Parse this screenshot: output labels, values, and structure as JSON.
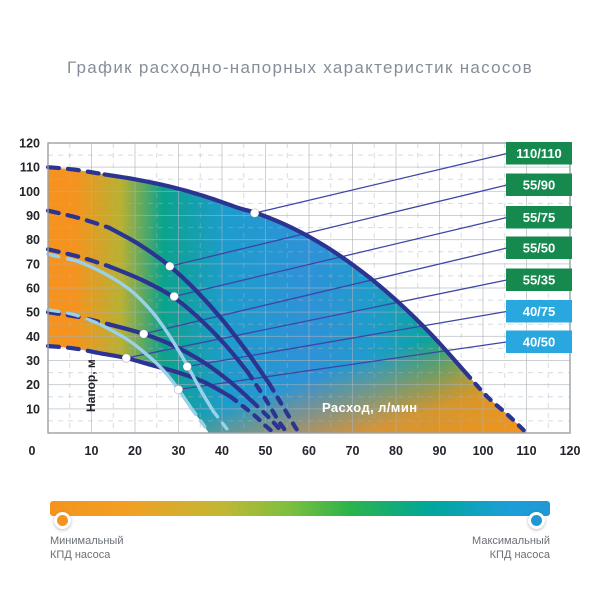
{
  "title": "График расходно-напорных характеристик насосов",
  "chart_data": {
    "type": "line",
    "xlabel": "Расход, л/мин",
    "ylabel": "Напор, м",
    "xlim": [
      0,
      120
    ],
    "ylim": [
      0,
      120
    ],
    "x_ticks": [
      0,
      10,
      20,
      30,
      40,
      50,
      60,
      70,
      80,
      90,
      100,
      110,
      120
    ],
    "y_ticks": [
      10,
      20,
      30,
      40,
      50,
      60,
      70,
      80,
      90,
      100,
      110,
      120
    ],
    "grid": {
      "major_step": 10,
      "minor_step": 5,
      "minor_style": "dashed"
    },
    "series": [
      {
        "name": "110/110",
        "type": "main",
        "box": "green",
        "dash_head": 2,
        "dash_tail": 3,
        "points": [
          [
            0,
            110
          ],
          [
            6,
            109
          ],
          [
            13,
            107
          ],
          [
            20,
            105
          ],
          [
            28,
            102
          ],
          [
            36,
            98
          ],
          [
            44,
            93
          ],
          [
            48,
            91
          ],
          [
            56,
            85
          ],
          [
            64,
            77
          ],
          [
            72,
            67
          ],
          [
            80,
            55
          ],
          [
            88,
            41
          ],
          [
            96,
            25
          ],
          [
            101,
            15
          ],
          [
            106,
            7
          ],
          [
            110,
            0
          ]
        ],
        "marker": [
          47.5,
          91
        ]
      },
      {
        "name": "55/90",
        "type": "main",
        "box": "green",
        "dash_head": 2,
        "dash_tail": 3,
        "points": [
          [
            0,
            92
          ],
          [
            7,
            89
          ],
          [
            14,
            85
          ],
          [
            21,
            78
          ],
          [
            28,
            69
          ],
          [
            34,
            59
          ],
          [
            40,
            47
          ],
          [
            46,
            33
          ],
          [
            51,
            20
          ],
          [
            55,
            8
          ],
          [
            57,
            2
          ],
          [
            58,
            0
          ]
        ],
        "marker": [
          28,
          69
        ]
      },
      {
        "name": "55/75",
        "type": "main",
        "box": "green",
        "dash_head": 2,
        "dash_tail": 3,
        "points": [
          [
            0,
            76
          ],
          [
            7,
            73
          ],
          [
            14,
            69
          ],
          [
            22,
            63
          ],
          [
            29,
            56
          ],
          [
            35,
            47
          ],
          [
            41,
            36
          ],
          [
            46,
            25
          ],
          [
            50,
            14
          ],
          [
            53,
            5
          ],
          [
            55,
            0
          ]
        ],
        "marker": [
          29,
          56.5
        ]
      },
      {
        "name": "55/50",
        "type": "main",
        "box": "green",
        "dash_head": 2,
        "dash_tail": 2,
        "points": [
          [
            0,
            50
          ],
          [
            7,
            48
          ],
          [
            14,
            45
          ],
          [
            22,
            41
          ],
          [
            29,
            36
          ],
          [
            36,
            29
          ],
          [
            42,
            21
          ],
          [
            47,
            13
          ],
          [
            51,
            6
          ],
          [
            54,
            0
          ]
        ],
        "marker": [
          22,
          41
        ]
      },
      {
        "name": "55/35",
        "type": "main",
        "box": "green",
        "dash_head": 2,
        "dash_tail": 3,
        "points": [
          [
            0,
            36
          ],
          [
            6,
            35
          ],
          [
            12,
            33
          ],
          [
            18,
            31
          ],
          [
            24,
            28
          ],
          [
            30,
            25
          ],
          [
            36,
            21
          ],
          [
            42,
            15
          ],
          [
            47,
            8
          ],
          [
            50,
            3
          ],
          [
            52,
            0
          ]
        ],
        "marker": [
          18,
          31
        ]
      },
      {
        "name": "40/75",
        "type": "aux",
        "box": "blue",
        "dash_head": 1,
        "dash_tail": 2,
        "points": [
          [
            0,
            74
          ],
          [
            7,
            71
          ],
          [
            13,
            66
          ],
          [
            19,
            59
          ],
          [
            24,
            50
          ],
          [
            28,
            40
          ],
          [
            32,
            28
          ],
          [
            35,
            18
          ],
          [
            38,
            9
          ],
          [
            41,
            2
          ],
          [
            42,
            0
          ]
        ],
        "marker": [
          32,
          27.5
        ]
      },
      {
        "name": "40/50",
        "type": "aux",
        "box": "blue",
        "dash_head": 2,
        "dash_tail": 2,
        "points": [
          [
            0,
            51
          ],
          [
            6,
            49
          ],
          [
            12,
            45
          ],
          [
            18,
            39
          ],
          [
            23,
            32
          ],
          [
            27,
            25
          ],
          [
            30,
            18
          ],
          [
            33,
            10
          ],
          [
            35.5,
            4
          ],
          [
            37,
            0
          ]
        ],
        "marker": [
          30,
          18
        ]
      }
    ],
    "fill_lower_boundary": [
      [
        0,
        36
      ],
      [
        6,
        35
      ],
      [
        12,
        33
      ],
      [
        18,
        31
      ],
      [
        24,
        28
      ],
      [
        27,
        25
      ],
      [
        30,
        18
      ],
      [
        33,
        10
      ],
      [
        35.5,
        4
      ],
      [
        37,
        0
      ]
    ],
    "efficiency_gradient_left_to_right": [
      "#f6931e",
      "#b8b132",
      "#0ba38c",
      "#2f92d8",
      "#0aa49b",
      "#44b157",
      "#ef9d20"
    ]
  },
  "legend": {
    "min_line1": "Минимальный",
    "min_line2": "КПД насоса",
    "max_line1": "Максимальный",
    "max_line2": "КПД насоса"
  },
  "colors": {
    "curve_main": "#2b3491",
    "curve_aux": "#9bd1e8",
    "callout": "#3d46a5",
    "box_green": "#15894e",
    "box_blue": "#29a8e0",
    "grid": "#a9b1b9",
    "border": "#9aa1a8",
    "tick_text": "#23242b",
    "title_text": "#858e98",
    "legend_text": "#6b7076",
    "orange": "#f6931e",
    "blue": "#2098d5"
  }
}
